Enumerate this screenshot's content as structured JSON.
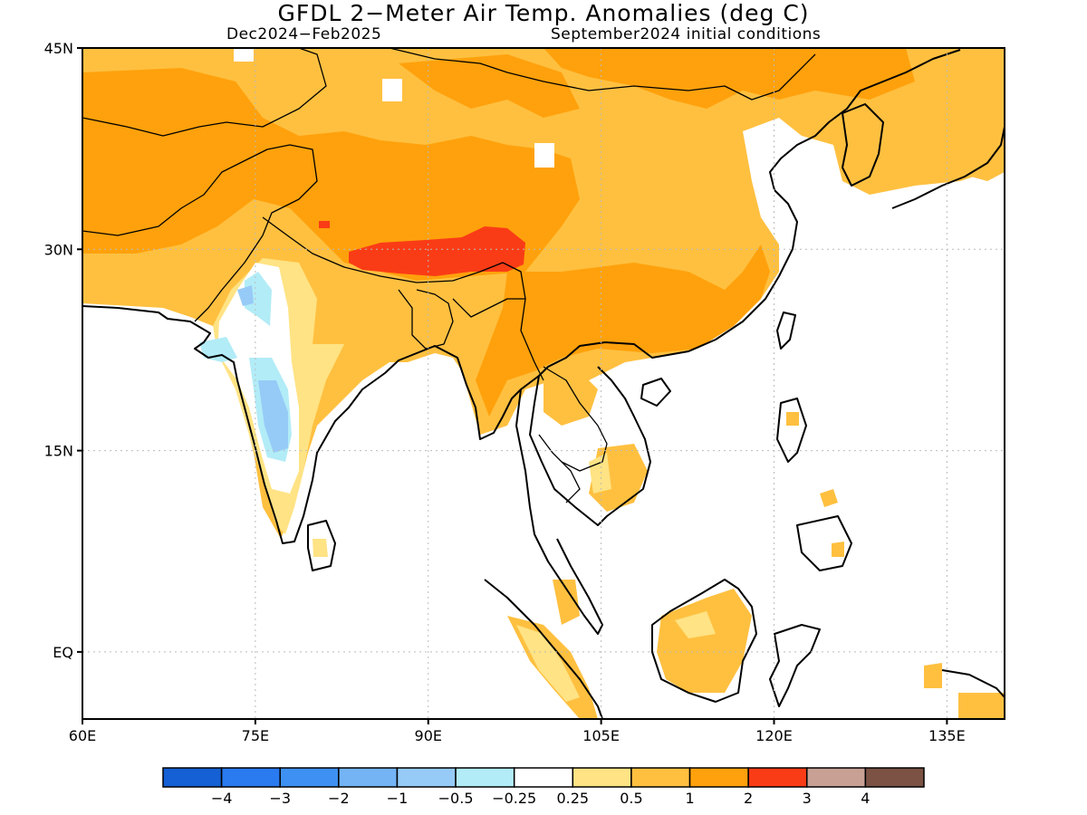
{
  "header": {
    "title": "GFDL 2−Meter Air Temp. Anomalies (deg C)",
    "period": "Dec2024−Feb2025",
    "init": "September2024 initial conditions"
  },
  "map": {
    "lon_range": [
      60,
      140
    ],
    "lat_range": [
      -5,
      45
    ],
    "lon_ticks": [
      {
        "value": 60,
        "label": "60E"
      },
      {
        "value": 75,
        "label": "75E"
      },
      {
        "value": 90,
        "label": "90E"
      },
      {
        "value": 105,
        "label": "105E"
      },
      {
        "value": 120,
        "label": "120E"
      },
      {
        "value": 135,
        "label": "135E"
      }
    ],
    "lat_ticks": [
      {
        "value": 45,
        "label": "45N"
      },
      {
        "value": 30,
        "label": "30N"
      },
      {
        "value": 15,
        "label": "15N"
      },
      {
        "value": 0,
        "label": "EQ"
      }
    ],
    "gridlines": "dotted"
  },
  "colorbar": {
    "colors": [
      "#1560d4",
      "#2a7af0",
      "#3e91f2",
      "#74b4f5",
      "#96cbf7",
      "#b2ecf7",
      "#ffffff",
      "#ffe384",
      "#ffc040",
      "#ffa10c",
      "#fa3c16",
      "#c8a194",
      "#7c5244"
    ],
    "labels": [
      "−4",
      "−3",
      "−2",
      "−1",
      "−0.5",
      "−0.25",
      "0.25",
      "0.5",
      "1",
      "2",
      "3",
      "4"
    ]
  },
  "colors": {
    "anom_025_05": "#ffe384",
    "anom_05_1": "#ffc040",
    "anom_1_2": "#ffa10c",
    "anom_2_3": "#fa3c16",
    "anom_neg025_0": "#b2ecf7",
    "anom_neg05_neg025": "#96cbf7",
    "anom_neg1_neg05": "#74b4f5"
  }
}
